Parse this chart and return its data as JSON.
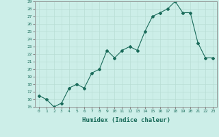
{
  "xlabel": "Humidex (Indice chaleur)",
  "ylabel": "",
  "x_values": [
    0,
    1,
    2,
    3,
    4,
    5,
    6,
    7,
    8,
    9,
    10,
    11,
    12,
    13,
    14,
    15,
    16,
    17,
    18,
    19,
    20,
    21,
    22,
    23
  ],
  "y_values": [
    16.5,
    16.0,
    15.0,
    15.5,
    17.5,
    18.0,
    17.5,
    19.5,
    20.0,
    22.5,
    21.5,
    22.5,
    23.0,
    22.5,
    25.0,
    27.0,
    27.5,
    28.0,
    29.0,
    27.5,
    27.5,
    23.5,
    21.5,
    21.5
  ],
  "ylim": [
    15,
    29
  ],
  "xlim": [
    -0.5,
    23.5
  ],
  "line_color": "#1a6b5a",
  "marker": "D",
  "marker_size": 2.0,
  "bg_color": "#cceee8",
  "grid_color": "#b8ddd5",
  "axis_color": "#888888",
  "tick_color": "#1a6b5a",
  "label_color": "#1a6b5a",
  "yticks": [
    15,
    16,
    17,
    18,
    19,
    20,
    21,
    22,
    23,
    24,
    25,
    26,
    27,
    28,
    29
  ],
  "xticks": [
    0,
    1,
    2,
    3,
    4,
    5,
    6,
    7,
    8,
    9,
    10,
    11,
    12,
    13,
    14,
    15,
    16,
    17,
    18,
    19,
    20,
    21,
    22,
    23
  ]
}
